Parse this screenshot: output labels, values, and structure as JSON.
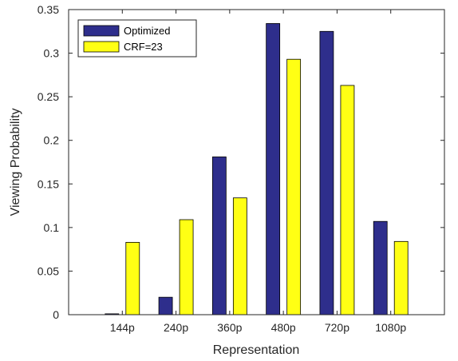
{
  "chart_data": {
    "type": "bar",
    "title": "",
    "xlabel": "Representation",
    "ylabel": "Viewing Probability",
    "categories": [
      "144p",
      "240p",
      "360p",
      "480p",
      "720p",
      "1080p"
    ],
    "ylim": [
      0,
      0.35
    ],
    "yticks": [
      0,
      0.05,
      0.1,
      0.15,
      0.2,
      0.25,
      0.3,
      0.35
    ],
    "ytick_labels": [
      "0",
      "0.05",
      "0.1",
      "0.15",
      "0.2",
      "0.25",
      "0.3",
      "0.35"
    ],
    "grid": false,
    "legend_position": "top-left",
    "series": [
      {
        "name": "Optimized",
        "color": "#2e2e8c",
        "values": [
          0.001,
          0.02,
          0.181,
          0.334,
          0.325,
          0.107
        ]
      },
      {
        "name": "CRF=23",
        "color": "#ffff14",
        "values": [
          0.083,
          0.109,
          0.134,
          0.293,
          0.263,
          0.084
        ]
      }
    ]
  }
}
